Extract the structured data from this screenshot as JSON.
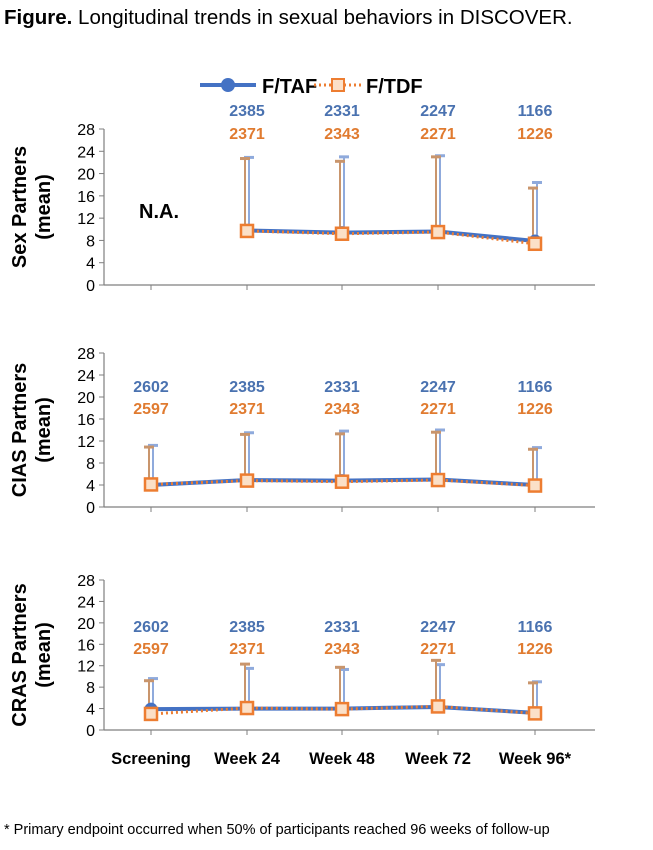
{
  "title": {
    "label": "Figure.",
    "text": "Longitudinal trends in sexual behaviors in DISCOVER."
  },
  "footnote": "* Primary endpoint occurred when 50% of participants reached 96 weeks of follow-up",
  "colors": {
    "taf": "#4472c4",
    "tdf": "#ed7d31",
    "taf_text": "#4a72b0",
    "tdf_text": "#e07b30",
    "axis": "#7f7f7f"
  },
  "chart_data": [
    {
      "type": "line",
      "ylabel": "Sex Partners\n(mean)",
      "categories": [
        "Screening",
        "Week 24",
        "Week 48",
        "Week 72",
        "Week 96*"
      ],
      "ylim": [
        0,
        28
      ],
      "yticks": [
        0,
        4,
        8,
        12,
        16,
        20,
        24,
        28
      ],
      "annotation": "N.A.",
      "series": [
        {
          "name": "F/TAF",
          "values": [
            null,
            9.8,
            9.4,
            9.6,
            7.9
          ],
          "error_upper": [
            null,
            22.9,
            23.0,
            23.2,
            18.4
          ],
          "n": [
            "",
            "2385",
            "2331",
            "2247",
            "1166"
          ]
        },
        {
          "name": "F/TDF",
          "values": [
            null,
            9.7,
            9.2,
            9.5,
            7.4
          ],
          "error_upper": [
            null,
            22.7,
            22.2,
            23.0,
            17.4
          ],
          "n": [
            "",
            "2371",
            "2343",
            "2271",
            "1226"
          ]
        }
      ]
    },
    {
      "type": "line",
      "ylabel": "CIAS Partners\n(mean)",
      "categories": [
        "Screening",
        "Week 24",
        "Week 48",
        "Week 72",
        "Week 96*"
      ],
      "ylim": [
        0,
        28
      ],
      "yticks": [
        0,
        4,
        8,
        12,
        16,
        20,
        24,
        28
      ],
      "series": [
        {
          "name": "F/TAF",
          "values": [
            4.0,
            4.9,
            4.8,
            5.0,
            4.0
          ],
          "error_upper": [
            11.2,
            13.5,
            13.8,
            14.0,
            10.8
          ],
          "n": [
            "2602",
            "2385",
            "2331",
            "2247",
            "1166"
          ]
        },
        {
          "name": "F/TDF",
          "values": [
            4.1,
            4.8,
            4.6,
            4.9,
            3.9
          ],
          "error_upper": [
            10.9,
            13.2,
            13.3,
            13.6,
            10.5
          ],
          "n": [
            "2597",
            "2371",
            "2343",
            "2271",
            "1226"
          ]
        }
      ]
    },
    {
      "type": "line",
      "ylabel": "CRAS Partners\n(mean)",
      "categories": [
        "Screening",
        "Week 24",
        "Week 48",
        "Week 72",
        "Week 96*"
      ],
      "ylim": [
        0,
        28
      ],
      "yticks": [
        0,
        4,
        8,
        12,
        16,
        20,
        24,
        28
      ],
      "series": [
        {
          "name": "F/TAF",
          "values": [
            3.9,
            4.0,
            4.0,
            4.3,
            3.2
          ],
          "error_upper": [
            9.6,
            11.5,
            11.3,
            12.2,
            9.0
          ],
          "n": [
            "2602",
            "2385",
            "2331",
            "2247",
            "1166"
          ]
        },
        {
          "name": "F/TDF",
          "values": [
            3.0,
            4.1,
            3.9,
            4.4,
            3.1
          ],
          "error_upper": [
            9.2,
            12.3,
            11.7,
            13.0,
            8.8
          ],
          "n": [
            "2597",
            "2371",
            "2343",
            "2271",
            "1226"
          ]
        }
      ]
    }
  ]
}
